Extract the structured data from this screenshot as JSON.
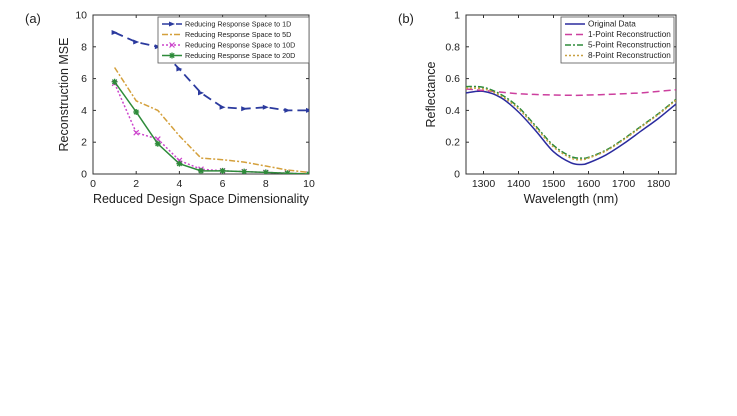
{
  "chart_data": [
    {
      "type": "line",
      "panel_label": "(a)",
      "xlabel": "Reduced Design Space Dimensionality",
      "ylabel": "Reconstruction MSE",
      "xlim": [
        0,
        10
      ],
      "ylim": [
        0,
        10
      ],
      "xticks": [
        0,
        2,
        4,
        6,
        8,
        10
      ],
      "yticks": [
        0,
        2,
        4,
        6,
        8,
        10
      ],
      "grid": false,
      "legend_position": "top-right",
      "x": [
        1,
        2,
        3,
        4,
        5,
        6,
        7,
        8,
        9,
        10
      ],
      "series": [
        {
          "name": "Reducing Response Space to 1D",
          "color": "#2b3a9e",
          "dash": "9,5",
          "marker": "arrow",
          "values": [
            8.9,
            8.3,
            8.0,
            6.6,
            5.1,
            4.2,
            4.1,
            4.2,
            4.0,
            4.0
          ]
        },
        {
          "name": "Reducing Response Space to 5D",
          "color": "#d4a03c",
          "dash": "6,2,2,2",
          "marker": "none",
          "values": [
            6.7,
            4.6,
            4.0,
            2.4,
            1.0,
            0.9,
            0.75,
            0.5,
            0.25,
            0.1
          ]
        },
        {
          "name": "Reducing Response Space to 10D",
          "color": "#cc44cc",
          "dash": "2,2",
          "marker": "x",
          "values": [
            5.7,
            2.6,
            2.2,
            0.85,
            0.3,
            0.2,
            0.15,
            0.1,
            0.05,
            0.0
          ]
        },
        {
          "name": "Reducing Response Space to 20D",
          "color": "#2e8b3a",
          "dash": "",
          "marker": "star",
          "values": [
            5.8,
            3.9,
            1.9,
            0.65,
            0.2,
            0.2,
            0.15,
            0.1,
            0.05,
            0.0
          ]
        }
      ]
    },
    {
      "type": "line",
      "panel_label": "(b)",
      "xlabel": "Wavelength (nm)",
      "ylabel": "Reflectance",
      "xlim": [
        1250,
        1850
      ],
      "ylim": [
        0,
        1
      ],
      "xticks": [
        1300,
        1400,
        1500,
        1600,
        1700,
        1800
      ],
      "yticks": [
        0,
        0.2,
        0.4,
        0.6,
        0.8,
        1
      ],
      "ytick_labels": [
        "0",
        "0.2",
        "0.4",
        "0.6",
        "0.8",
        "1"
      ],
      "grid": false,
      "legend_position": "top-right",
      "x": [
        1250,
        1300,
        1350,
        1400,
        1450,
        1500,
        1550,
        1580,
        1600,
        1650,
        1700,
        1750,
        1800,
        1850
      ],
      "series": [
        {
          "name": "Original Data",
          "color": "#2b2b9e",
          "dash": "",
          "values": [
            0.51,
            0.52,
            0.48,
            0.39,
            0.27,
            0.14,
            0.07,
            0.06,
            0.07,
            0.12,
            0.19,
            0.27,
            0.35,
            0.44
          ]
        },
        {
          "name": "1-Point Reconstruction",
          "color": "#cc3f9e",
          "dash": "7,4",
          "values": [
            0.535,
            0.525,
            0.515,
            0.505,
            0.5,
            0.497,
            0.495,
            0.495,
            0.497,
            0.5,
            0.505,
            0.51,
            0.52,
            0.53
          ]
        },
        {
          "name": "5-Point Reconstruction",
          "color": "#2e8b3a",
          "dash": "6,2,2,2",
          "values": [
            0.55,
            0.545,
            0.5,
            0.42,
            0.3,
            0.18,
            0.11,
            0.1,
            0.105,
            0.15,
            0.22,
            0.3,
            0.38,
            0.47
          ]
        },
        {
          "name": "8-Point Reconstruction",
          "color": "#c8a040",
          "dash": "2,2",
          "values": [
            0.54,
            0.535,
            0.49,
            0.41,
            0.29,
            0.17,
            0.1,
            0.09,
            0.1,
            0.145,
            0.215,
            0.295,
            0.375,
            0.465
          ]
        }
      ]
    }
  ]
}
